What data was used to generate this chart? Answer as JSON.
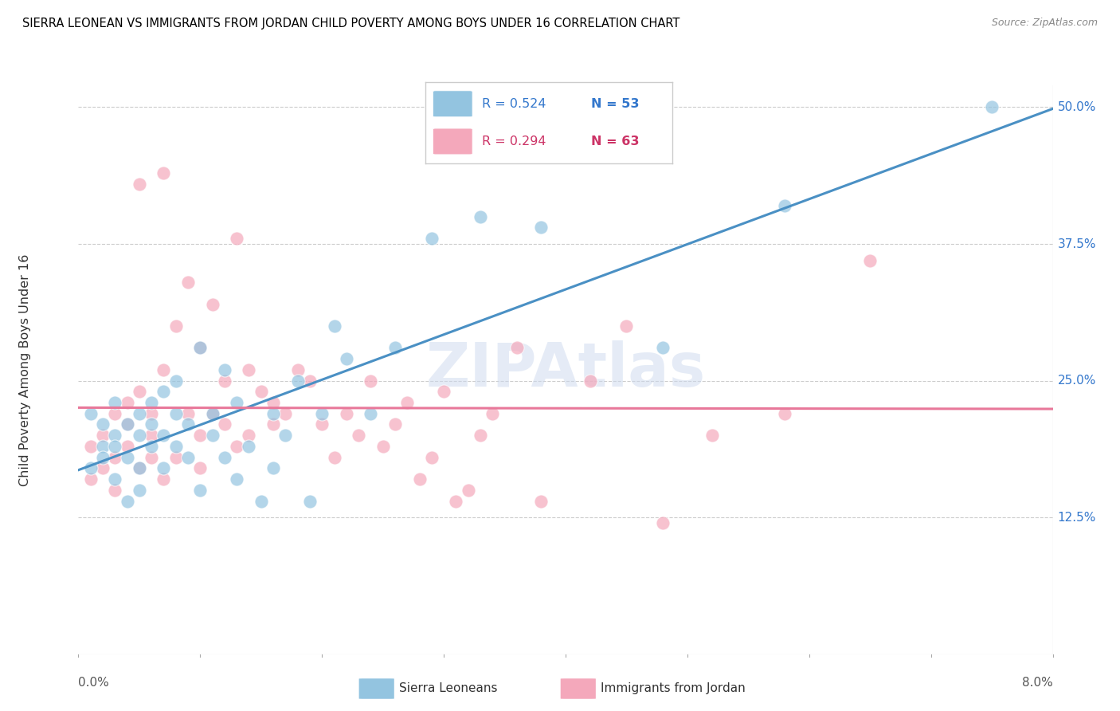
{
  "title": "SIERRA LEONEAN VS IMMIGRANTS FROM JORDAN CHILD POVERTY AMONG BOYS UNDER 16 CORRELATION CHART",
  "source": "Source: ZipAtlas.com",
  "ylabel": "Child Poverty Among Boys Under 16",
  "xlim": [
    0.0,
    0.08
  ],
  "ylim": [
    0.0,
    0.52
  ],
  "yticks": [
    0.0,
    0.125,
    0.25,
    0.375,
    0.5
  ],
  "ytick_labels": [
    "",
    "12.5%",
    "25.0%",
    "37.5%",
    "50.0%"
  ],
  "xtick_labels": [
    "0.0%",
    "8.0%"
  ],
  "legend_r1": "R = 0.524",
  "legend_n1": "N = 53",
  "legend_r2": "R = 0.294",
  "legend_n2": "N = 63",
  "color_blue": "#93c4e0",
  "color_pink": "#f4a8bb",
  "color_blue_line": "#4a90c4",
  "color_pink_line": "#e8789a",
  "color_blue_text": "#3377cc",
  "color_pink_text": "#cc3366",
  "watermark": "ZIPAtlas",
  "sierra_x": [
    0.001,
    0.001,
    0.002,
    0.002,
    0.002,
    0.003,
    0.003,
    0.003,
    0.003,
    0.004,
    0.004,
    0.004,
    0.005,
    0.005,
    0.005,
    0.005,
    0.006,
    0.006,
    0.006,
    0.007,
    0.007,
    0.007,
    0.008,
    0.008,
    0.008,
    0.009,
    0.009,
    0.01,
    0.01,
    0.011,
    0.011,
    0.012,
    0.012,
    0.013,
    0.013,
    0.014,
    0.015,
    0.016,
    0.016,
    0.017,
    0.018,
    0.019,
    0.02,
    0.021,
    0.022,
    0.024,
    0.026,
    0.029,
    0.033,
    0.038,
    0.048,
    0.058,
    0.075
  ],
  "sierra_y": [
    0.17,
    0.22,
    0.19,
    0.21,
    0.18,
    0.2,
    0.16,
    0.23,
    0.19,
    0.21,
    0.18,
    0.14,
    0.22,
    0.2,
    0.17,
    0.15,
    0.19,
    0.23,
    0.21,
    0.24,
    0.2,
    0.17,
    0.22,
    0.19,
    0.25,
    0.21,
    0.18,
    0.28,
    0.15,
    0.2,
    0.22,
    0.26,
    0.18,
    0.23,
    0.16,
    0.19,
    0.14,
    0.22,
    0.17,
    0.2,
    0.25,
    0.14,
    0.22,
    0.3,
    0.27,
    0.22,
    0.28,
    0.38,
    0.4,
    0.39,
    0.28,
    0.41,
    0.5
  ],
  "jordan_x": [
    0.001,
    0.001,
    0.002,
    0.002,
    0.003,
    0.003,
    0.003,
    0.004,
    0.004,
    0.004,
    0.005,
    0.005,
    0.005,
    0.006,
    0.006,
    0.006,
    0.007,
    0.007,
    0.007,
    0.008,
    0.008,
    0.009,
    0.009,
    0.01,
    0.01,
    0.01,
    0.011,
    0.011,
    0.012,
    0.012,
    0.013,
    0.013,
    0.014,
    0.014,
    0.015,
    0.016,
    0.016,
    0.017,
    0.018,
    0.019,
    0.02,
    0.021,
    0.022,
    0.023,
    0.024,
    0.025,
    0.026,
    0.027,
    0.028,
    0.029,
    0.03,
    0.031,
    0.032,
    0.033,
    0.034,
    0.036,
    0.038,
    0.042,
    0.045,
    0.048,
    0.052,
    0.058,
    0.065
  ],
  "jordan_y": [
    0.16,
    0.19,
    0.2,
    0.17,
    0.22,
    0.18,
    0.15,
    0.23,
    0.19,
    0.21,
    0.17,
    0.24,
    0.43,
    0.18,
    0.22,
    0.2,
    0.16,
    0.44,
    0.26,
    0.18,
    0.3,
    0.22,
    0.34,
    0.2,
    0.17,
    0.28,
    0.22,
    0.32,
    0.25,
    0.21,
    0.19,
    0.38,
    0.26,
    0.2,
    0.24,
    0.23,
    0.21,
    0.22,
    0.26,
    0.25,
    0.21,
    0.18,
    0.22,
    0.2,
    0.25,
    0.19,
    0.21,
    0.23,
    0.16,
    0.18,
    0.24,
    0.14,
    0.15,
    0.2,
    0.22,
    0.28,
    0.14,
    0.25,
    0.3,
    0.12,
    0.2,
    0.22,
    0.36
  ]
}
